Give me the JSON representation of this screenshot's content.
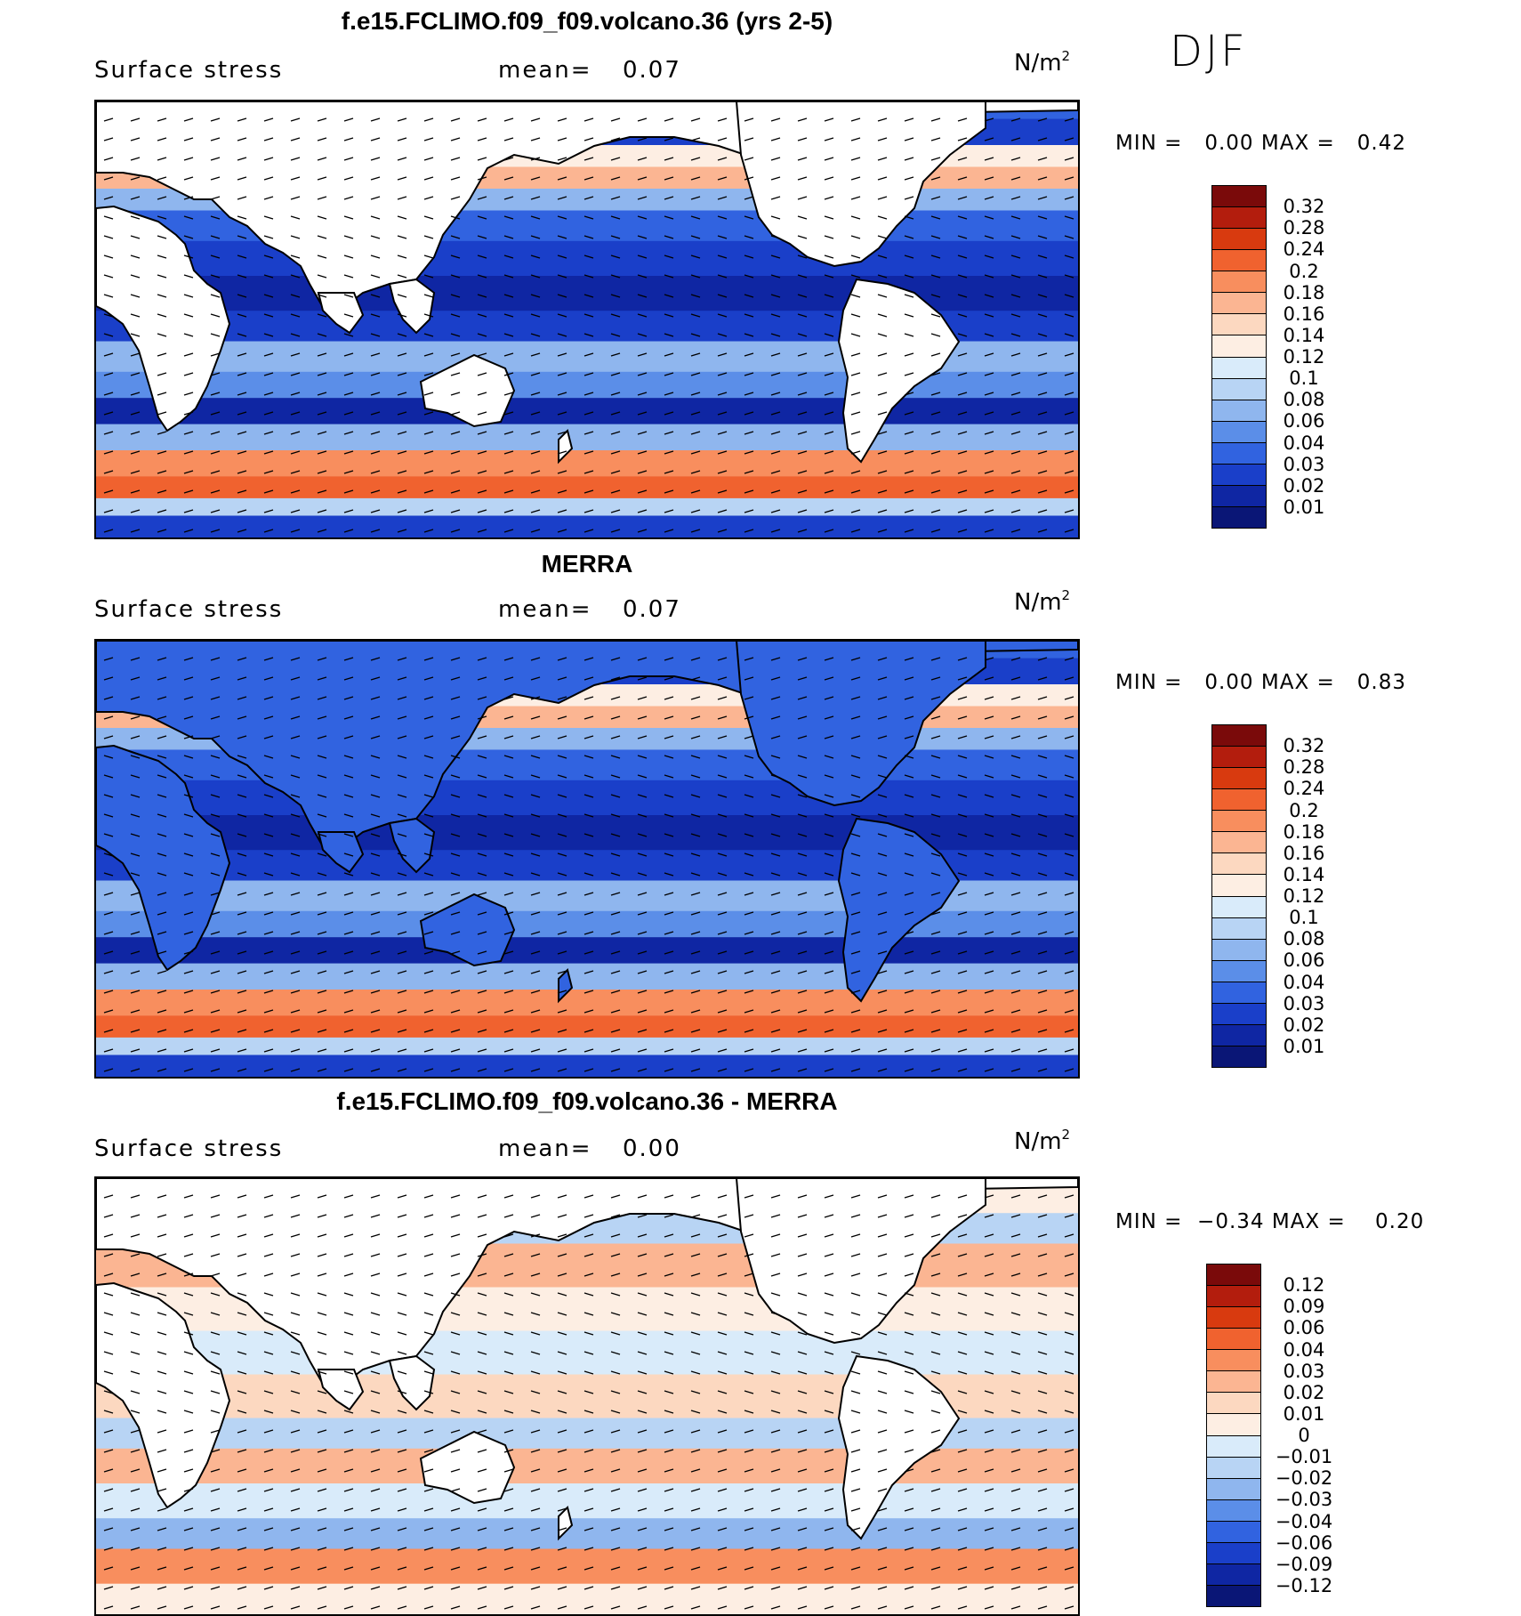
{
  "season": "DJF",
  "panels": [
    {
      "title": "f.e15.FCLIMO.f09_f09.volcano.36 (yrs 2-5)",
      "variable": "Surface stress",
      "mean_label": "mean=",
      "mean_value": "0.07",
      "unit_base": "N/m",
      "unit_exp": "2",
      "min_label": "MIN =",
      "min_value": "0.00",
      "max_label": "MAX =",
      "max_value": "0.42",
      "colorbar_labels": [
        "0.32",
        "0.28",
        "0.24",
        "0.2",
        "0.18",
        "0.16",
        "0.14",
        "0.12",
        "0.1",
        "0.08",
        "0.06",
        "0.04",
        "0.03",
        "0.02",
        "0.01"
      ],
      "colors": [
        "#7a0a0a",
        "#b31d0d",
        "#d83a0f",
        "#f0622f",
        "#f88e5e",
        "#fbb592",
        "#fcd8c0",
        "#fdeee3",
        "#d9ebfa",
        "#b8d4f4",
        "#8fb6ee",
        "#5b8ee8",
        "#3163e0",
        "#1a3fc9",
        "#0f26a3",
        "#0a1676"
      ],
      "field": "full"
    },
    {
      "title": "MERRA",
      "variable": "Surface stress",
      "mean_label": "mean=",
      "mean_value": "0.07",
      "unit_base": "N/m",
      "unit_exp": "2",
      "min_label": "MIN =",
      "min_value": "0.00",
      "max_label": "MAX =",
      "max_value": "0.83",
      "colorbar_labels": [
        "0.32",
        "0.28",
        "0.24",
        "0.2",
        "0.18",
        "0.16",
        "0.14",
        "0.12",
        "0.1",
        "0.08",
        "0.06",
        "0.04",
        "0.03",
        "0.02",
        "0.01"
      ],
      "colors": [
        "#7a0a0a",
        "#b31d0d",
        "#d83a0f",
        "#f0622f",
        "#f88e5e",
        "#fbb592",
        "#fcd8c0",
        "#fdeee3",
        "#d9ebfa",
        "#b8d4f4",
        "#8fb6ee",
        "#5b8ee8",
        "#3163e0",
        "#1a3fc9",
        "#0f26a3",
        "#0a1676"
      ],
      "field": "full"
    },
    {
      "title": "f.e15.FCLIMO.f09_f09.volcano.36 - MERRA",
      "variable": "Surface stress",
      "mean_label": "mean=",
      "mean_value": "0.00",
      "unit_base": "N/m",
      "unit_exp": "2",
      "min_label": "MIN =",
      "min_value": "−0.34",
      "max_label": "MAX =",
      "max_value": "0.20",
      "colorbar_labels": [
        "0.12",
        "0.09",
        "0.06",
        "0.04",
        "0.03",
        "0.02",
        "0.01",
        "0",
        "−0.01",
        "−0.02",
        "−0.03",
        "−0.04",
        "−0.06",
        "−0.09",
        "−0.12"
      ],
      "colors": [
        "#7a0a0a",
        "#b31d0d",
        "#d83a0f",
        "#f0622f",
        "#f88e5e",
        "#fbb592",
        "#fcd8c0",
        "#fdeee3",
        "#d9ebfa",
        "#b8d4f4",
        "#8fb6ee",
        "#5b8ee8",
        "#3163e0",
        "#1a3fc9",
        "#0f26a3",
        "#0a1676"
      ],
      "field": "diff"
    }
  ]
}
